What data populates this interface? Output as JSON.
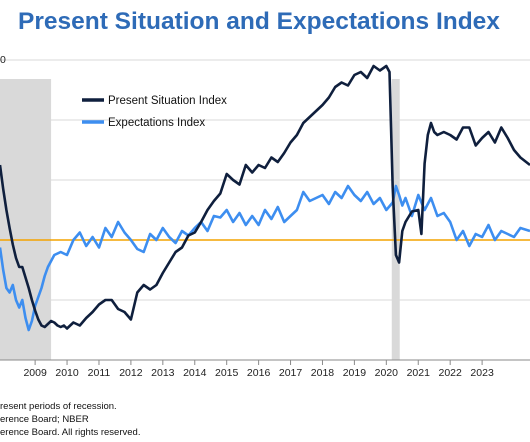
{
  "header": {
    "title": "Present Situation and Expectations Index"
  },
  "footnotes": [
    "resent periods of recession.",
    "erence Board;  NBER",
    "erence Board. All rights reserved."
  ],
  "colors": {
    "present": "#0f1f3d",
    "expectations": "#3d8ef0",
    "threshold": "#f4a300",
    "recession": "#d9d9d9",
    "grid": "#d9d9d9",
    "title": "#2e6bb7"
  },
  "chart_data": {
    "type": "line",
    "title": "Present Situation and Expectations Index",
    "xlabel": "",
    "ylabel": "",
    "y_tick_label": "0",
    "xlim": [
      2007.9,
      2024.5
    ],
    "ylim": [
      0,
      200
    ],
    "x_ticks": [
      "2009",
      "2010",
      "2011",
      "2012",
      "2013",
      "2014",
      "2015",
      "2016",
      "2017",
      "2018",
      "2019",
      "2020",
      "2021",
      "2022",
      "2023"
    ],
    "x_tick_values": [
      2009,
      2010,
      2011,
      2012,
      2013,
      2014,
      2015,
      2016,
      2017,
      2018,
      2019,
      2020,
      2021,
      2022,
      2023
    ],
    "recessions": [
      [
        2007.9,
        2009.5
      ],
      [
        2020.17,
        2020.42
      ]
    ],
    "threshold": 80,
    "grid": true,
    "legend_position": "top-center",
    "series": [
      {
        "name": "Present Situation Index",
        "x": [
          2007.9,
          2008.0,
          2008.1,
          2008.2,
          2008.3,
          2008.4,
          2008.5,
          2008.6,
          2008.7,
          2008.8,
          2008.9,
          2009.0,
          2009.1,
          2009.2,
          2009.3,
          2009.4,
          2009.5,
          2009.6,
          2009.7,
          2009.8,
          2009.9,
          2010.0,
          2010.2,
          2010.4,
          2010.6,
          2010.8,
          2011.0,
          2011.2,
          2011.4,
          2011.6,
          2011.8,
          2012.0,
          2012.2,
          2012.4,
          2012.6,
          2012.8,
          2013.0,
          2013.2,
          2013.4,
          2013.6,
          2013.8,
          2014.0,
          2014.2,
          2014.4,
          2014.6,
          2014.8,
          2015.0,
          2015.2,
          2015.4,
          2015.6,
          2015.8,
          2016.0,
          2016.2,
          2016.4,
          2016.6,
          2016.8,
          2017.0,
          2017.2,
          2017.4,
          2017.6,
          2017.8,
          2018.0,
          2018.2,
          2018.4,
          2018.6,
          2018.8,
          2019.0,
          2019.2,
          2019.4,
          2019.6,
          2019.8,
          2020.0,
          2020.1,
          2020.2,
          2020.3,
          2020.4,
          2020.5,
          2020.6,
          2020.8,
          2021.0,
          2021.1,
          2021.2,
          2021.3,
          2021.4,
          2021.5,
          2021.6,
          2021.8,
          2022.0,
          2022.2,
          2022.4,
          2022.6,
          2022.8,
          2023.0,
          2023.2,
          2023.4,
          2023.6,
          2023.8,
          2024.0,
          2024.2,
          2024.5
        ],
        "values": [
          130,
          114,
          100,
          88,
          77,
          68,
          62,
          62,
          55,
          48,
          40,
          33,
          27,
          23,
          22,
          24,
          26,
          25,
          23,
          22,
          23,
          21,
          25,
          23,
          28,
          32,
          37,
          40,
          40,
          34,
          32,
          27,
          45,
          50,
          47,
          50,
          58,
          65,
          72,
          75,
          83,
          85,
          92,
          100,
          106,
          111,
          124,
          120,
          117,
          130,
          125,
          130,
          128,
          135,
          132,
          138,
          145,
          150,
          158,
          162,
          166,
          170,
          175,
          182,
          185,
          183,
          190,
          192,
          188,
          196,
          193,
          196,
          192,
          115,
          70,
          65,
          86,
          92,
          99,
          100,
          84,
          131,
          150,
          158,
          152,
          150,
          152,
          150,
          147,
          155,
          155,
          143,
          148,
          152,
          145,
          155,
          148,
          140,
          135,
          130
        ]
      },
      {
        "name": "Expectations Index",
        "x": [
          2007.9,
          2008.0,
          2008.1,
          2008.2,
          2008.3,
          2008.4,
          2008.5,
          2008.6,
          2008.7,
          2008.8,
          2008.9,
          2009.0,
          2009.1,
          2009.2,
          2009.3,
          2009.4,
          2009.5,
          2009.6,
          2009.8,
          2010.0,
          2010.2,
          2010.4,
          2010.6,
          2010.8,
          2011.0,
          2011.2,
          2011.4,
          2011.6,
          2011.8,
          2012.0,
          2012.2,
          2012.4,
          2012.6,
          2012.8,
          2013.0,
          2013.2,
          2013.4,
          2013.6,
          2013.8,
          2014.0,
          2014.2,
          2014.4,
          2014.6,
          2014.8,
          2015.0,
          2015.2,
          2015.4,
          2015.6,
          2015.8,
          2016.0,
          2016.2,
          2016.4,
          2016.6,
          2016.8,
          2017.0,
          2017.2,
          2017.4,
          2017.6,
          2017.8,
          2018.0,
          2018.2,
          2018.4,
          2018.6,
          2018.8,
          2019.0,
          2019.2,
          2019.4,
          2019.6,
          2019.8,
          2020.0,
          2020.2,
          2020.3,
          2020.4,
          2020.5,
          2020.6,
          2020.8,
          2021.0,
          2021.2,
          2021.4,
          2021.6,
          2021.8,
          2022.0,
          2022.2,
          2022.4,
          2022.6,
          2022.8,
          2023.0,
          2023.2,
          2023.4,
          2023.6,
          2023.8,
          2024.0,
          2024.2,
          2024.5
        ],
        "values": [
          75,
          60,
          48,
          45,
          50,
          40,
          35,
          40,
          28,
          20,
          26,
          36,
          42,
          48,
          56,
          62,
          66,
          70,
          72,
          70,
          80,
          85,
          76,
          82,
          75,
          88,
          82,
          92,
          85,
          80,
          74,
          72,
          84,
          80,
          88,
          82,
          78,
          86,
          83,
          88,
          92,
          86,
          96,
          95,
          100,
          92,
          98,
          90,
          96,
          90,
          100,
          94,
          102,
          92,
          96,
          100,
          112,
          106,
          108,
          110,
          104,
          112,
          108,
          116,
          110,
          106,
          112,
          104,
          108,
          100,
          105,
          116,
          110,
          103,
          108,
          96,
          110,
          100,
          108,
          96,
          98,
          92,
          80,
          86,
          76,
          84,
          82,
          90,
          80,
          86,
          84,
          82,
          88,
          86
        ]
      }
    ]
  }
}
